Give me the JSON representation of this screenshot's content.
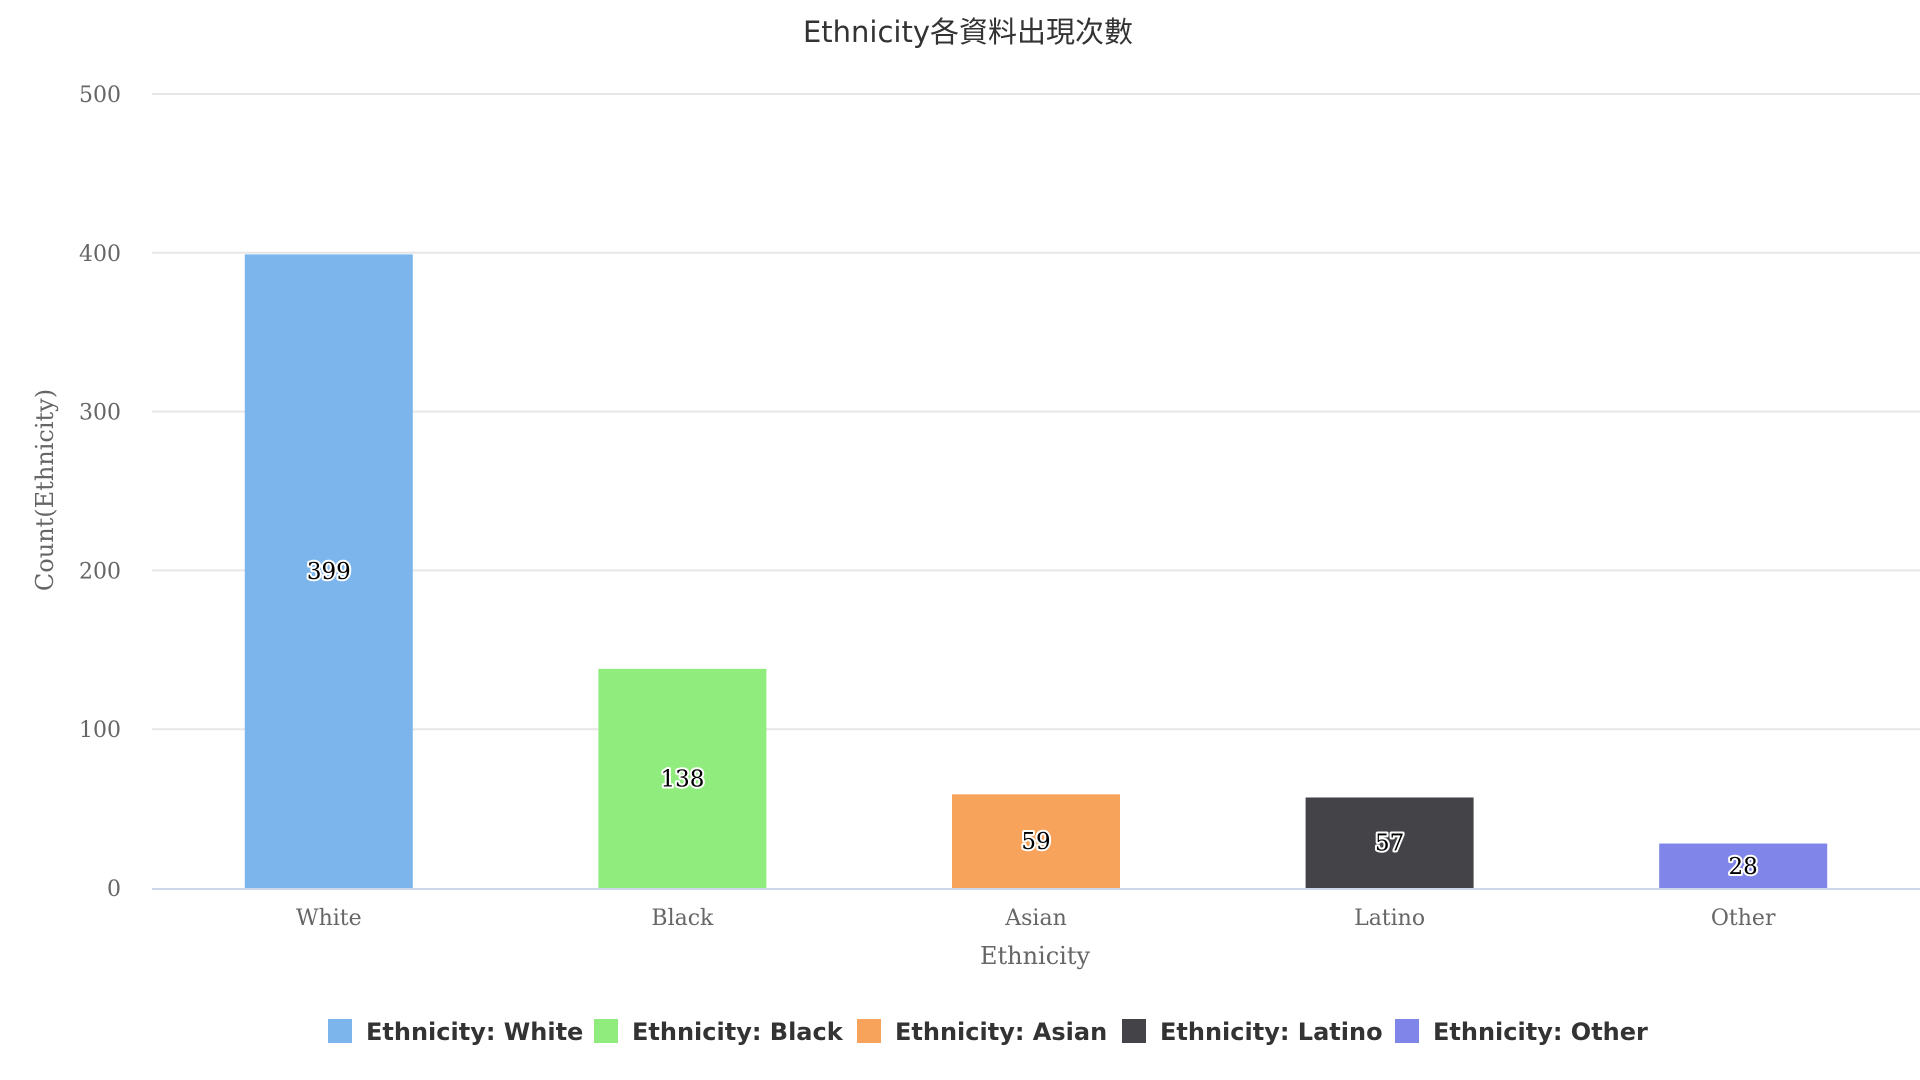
{
  "chart_data": {
    "type": "bar",
    "title": "Ethnicity各資料出現次數",
    "xlabel": "Ethnicity",
    "ylabel": "Count(Ethnicity)",
    "categories": [
      "White",
      "Black",
      "Asian",
      "Latino",
      "Other"
    ],
    "values": [
      399,
      138,
      59,
      57,
      28
    ],
    "colors": [
      "#7cb5ec",
      "#90ed7d",
      "#f7a35c",
      "#434348",
      "#8085e9"
    ],
    "ylim": [
      0,
      500
    ],
    "yticks": [
      0,
      100,
      200,
      300,
      400,
      500
    ],
    "grid": true,
    "legend_position": "bottom",
    "legend": [
      "Ethnicity: White",
      "Ethnicity: Black",
      "Ethnicity: Asian",
      "Ethnicity: Latino",
      "Ethnicity: Other"
    ]
  }
}
